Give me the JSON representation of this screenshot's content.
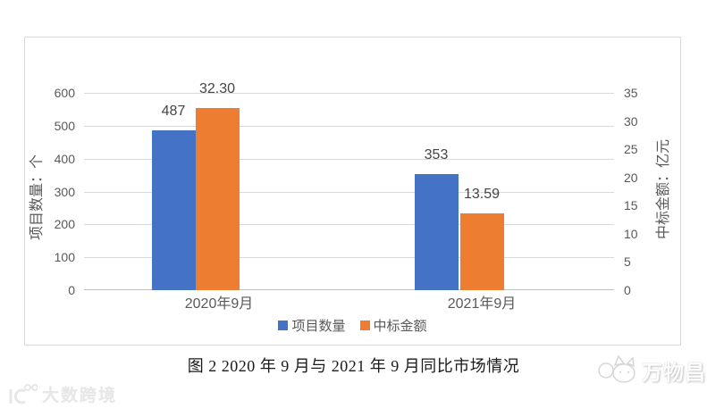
{
  "chart_data": {
    "type": "bar",
    "title": "图 2  2020 年 9 月与 2021 年 9 月同比市场情况",
    "categories": [
      "2020年9月",
      "2021年9月"
    ],
    "series": [
      {
        "name": "项目数量",
        "axis": "primary",
        "color": "#4472C4",
        "values": [
          487,
          353
        ],
        "data_labels": [
          "487",
          "353"
        ]
      },
      {
        "name": "中标金额",
        "axis": "secondary",
        "color": "#ED7D31",
        "values": [
          32.3,
          13.59
        ],
        "data_labels": [
          "32.30",
          "13.59"
        ]
      }
    ],
    "primary_axis": {
      "title": "项目数量：个",
      "min": 0,
      "max": 600,
      "tick_interval": 100,
      "tick_labels": [
        "600",
        "500",
        "400",
        "300",
        "200",
        "100",
        "0"
      ]
    },
    "secondary_axis": {
      "title": "中标金额：亿元",
      "min": 0,
      "max": 35,
      "tick_interval": 5,
      "tick_labels": [
        "35",
        "30",
        "25",
        "20",
        "15",
        "10",
        "5",
        "0"
      ]
    },
    "grid": "horizontal",
    "legend_position": "bottom"
  },
  "caption": "图 2  2020 年 9 月与 2021 年 9 月同比市场情况",
  "watermarks": {
    "bottom_left": "大数跨境",
    "bottom_right": "万物昌"
  },
  "colors": {
    "bar_blue": "#4472C4",
    "bar_orange": "#ED7D31",
    "gridline": "#D9D9D9",
    "axis_line": "#BFBFBF",
    "tick_text": "#595959",
    "data_label_text": "#444444",
    "card_border": "#D9D9D9"
  }
}
